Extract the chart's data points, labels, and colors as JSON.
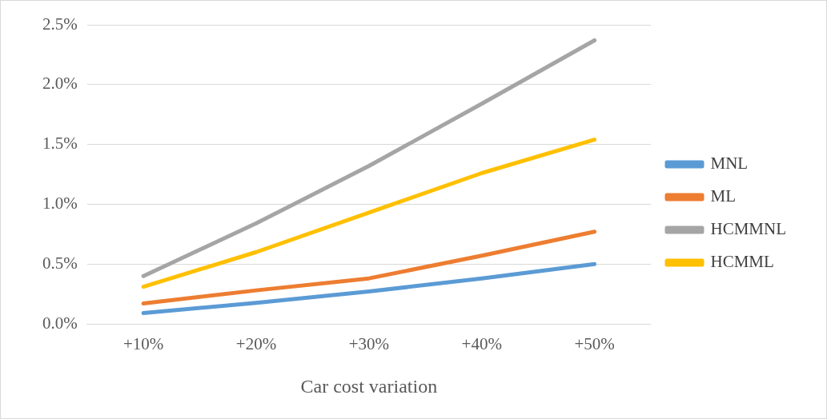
{
  "chart_data": {
    "type": "line",
    "xlabel": "Car cost variation",
    "categories": [
      "+10%",
      "+20%",
      "+30%",
      "+40%",
      "+50%"
    ],
    "series": [
      {
        "name": "MNL",
        "color": "#5b9bd5",
        "values": [
          0.09,
          0.175,
          0.27,
          0.38,
          0.5
        ]
      },
      {
        "name": "ML",
        "color": "#ed7d31",
        "values": [
          0.17,
          0.28,
          0.38,
          0.57,
          0.77
        ]
      },
      {
        "name": "HCMMNL",
        "color": "#a5a5a5",
        "values": [
          0.4,
          0.84,
          1.32,
          1.84,
          2.37
        ]
      },
      {
        "name": "HCMML",
        "color": "#ffc000",
        "values": [
          0.31,
          0.6,
          0.93,
          1.26,
          1.54
        ]
      }
    ],
    "ylim": [
      0,
      2.5
    ],
    "yticks": [
      {
        "value": 0,
        "label": "0.0%"
      },
      {
        "value": 0.5,
        "label": "0.5%"
      },
      {
        "value": 1,
        "label": "1.0%"
      },
      {
        "value": 1.5,
        "label": "1.5%"
      },
      {
        "value": 2,
        "label": "2.0%"
      },
      {
        "value": 2.5,
        "label": "2.5%"
      }
    ],
    "grid": "y",
    "legend": "right",
    "marker": "none",
    "line_style": "solid"
  }
}
